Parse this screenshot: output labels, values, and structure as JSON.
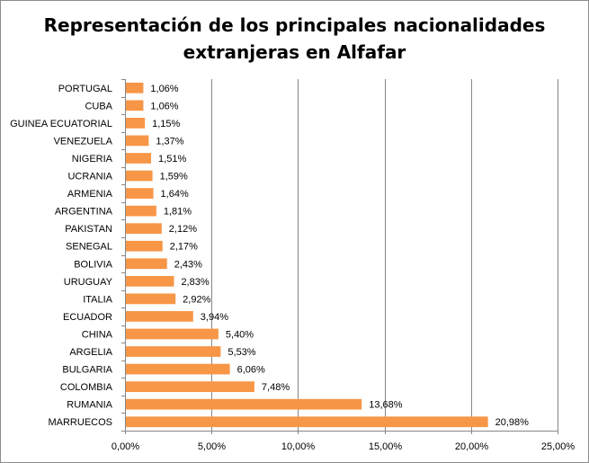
{
  "chart_data": {
    "type": "bar",
    "orientation": "horizontal",
    "title": "Representación de los principales nacionalidades extranjeras en Alfafar",
    "title_lines": [
      "Representación de los principales nacionalidades",
      "extranjeras en Alfafar"
    ],
    "categories": [
      "PORTUGAL",
      "CUBA",
      "GUINEA ECUATORIAL",
      "VENEZUELA",
      "NIGERIA",
      "UCRANIA",
      "ARMENIA",
      "ARGENTINA",
      "PAKISTAN",
      "SENEGAL",
      "BOLIVIA",
      "URUGUAY",
      "ITALIA",
      "ECUADOR",
      "CHINA",
      "ARGELIA",
      "BULGARIA",
      "COLOMBIA",
      "RUMANIA",
      "MARRUECOS"
    ],
    "values": [
      1.06,
      1.06,
      1.15,
      1.37,
      1.51,
      1.59,
      1.64,
      1.81,
      2.12,
      2.17,
      2.43,
      2.83,
      2.92,
      3.94,
      5.4,
      5.53,
      6.06,
      7.48,
      13.68,
      20.98
    ],
    "value_labels": [
      "1,06%",
      "1,06%",
      "1,15%",
      "1,37%",
      "1,51%",
      "1,59%",
      "1,64%",
      "1,81%",
      "2,12%",
      "2,17%",
      "2,43%",
      "2,83%",
      "2,92%",
      "3,94%",
      "5,40%",
      "5,53%",
      "6,06%",
      "7,48%",
      "13,68%",
      "20,98%"
    ],
    "xlim": [
      0,
      25
    ],
    "xticks": [
      0,
      5,
      10,
      15,
      20,
      25
    ],
    "xtick_labels": [
      "0,00%",
      "5,00%",
      "10,00%",
      "15,00%",
      "20,00%",
      "25,00%"
    ],
    "xlabel": "",
    "ylabel": "",
    "grid": "vertical",
    "legend": "none",
    "colors": {
      "bar": "#F79646",
      "bar_edge": "#ED7D31",
      "grid": "#868686",
      "axis": "#868686"
    }
  }
}
